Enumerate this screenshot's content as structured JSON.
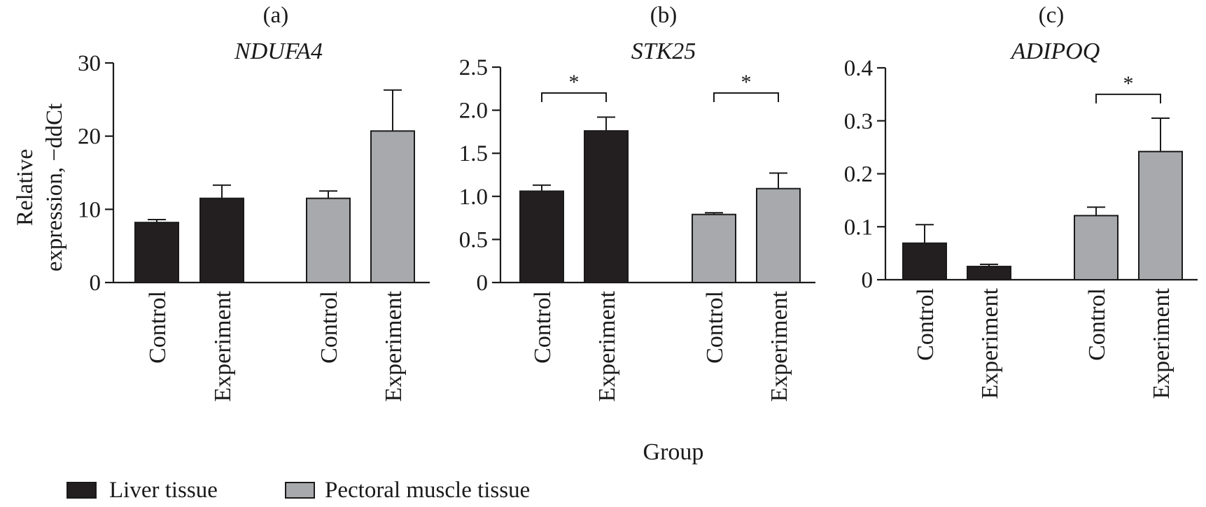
{
  "colors": {
    "liver": "#231f20",
    "pectoral": "#a7a9ac",
    "ink": "#1a1a1a"
  },
  "figure": {
    "xlabel": "Group",
    "ylabel_line1": "Relative",
    "ylabel_line2": "expression, −ddCt"
  },
  "legend": {
    "liver": "Liver tissue",
    "pectoral": "Pectoral muscle tissue"
  },
  "chart_data": [
    {
      "type": "bar",
      "panel": "(a)",
      "title": "NDUFA4",
      "categories": [
        "Control",
        "Experiment",
        "Control",
        "Experiment"
      ],
      "tissue": [
        "Liver tissue",
        "Liver tissue",
        "Pectoral muscle tissue",
        "Pectoral muscle tissue"
      ],
      "values": [
        8.2,
        11.5,
        11.5,
        20.7
      ],
      "errors": [
        0.4,
        1.8,
        1.0,
        5.6
      ],
      "ylim": [
        0,
        30
      ],
      "yticks": [
        "0",
        "10",
        "20",
        "30"
      ],
      "significance": []
    },
    {
      "type": "bar",
      "panel": "(b)",
      "title": "STK25",
      "categories": [
        "Control",
        "Experiment",
        "Control",
        "Experiment"
      ],
      "tissue": [
        "Liver tissue",
        "Liver tissue",
        "Pectoral muscle tissue",
        "Pectoral muscle tissue"
      ],
      "values": [
        1.06,
        1.76,
        0.79,
        1.09
      ],
      "errors": [
        0.07,
        0.16,
        0.02,
        0.18
      ],
      "ylim": [
        0,
        2.5
      ],
      "yticks": [
        "0",
        "0.5",
        "1.0",
        "1.5",
        "2.0",
        "2.5"
      ],
      "significance": [
        {
          "from": 0,
          "to": 1,
          "label": "*",
          "level": 2.2
        },
        {
          "from": 2,
          "to": 3,
          "label": "*",
          "level": 2.2
        }
      ]
    },
    {
      "type": "bar",
      "panel": "(c)",
      "title": "ADIPOQ",
      "categories": [
        "Control",
        "Experiment",
        "Control",
        "Experiment"
      ],
      "tissue": [
        "Liver tissue",
        "Liver tissue",
        "Pectoral muscle tissue",
        "Pectoral muscle tissue"
      ],
      "values": [
        0.069,
        0.025,
        0.121,
        0.242
      ],
      "errors": [
        0.035,
        0.004,
        0.016,
        0.063
      ],
      "ylim": [
        0,
        0.4
      ],
      "yticks": [
        "0",
        "0.1",
        "0.2",
        "0.3",
        "0.4"
      ],
      "significance": [
        {
          "from": 2,
          "to": 3,
          "label": "*",
          "level": 0.35
        }
      ]
    }
  ]
}
